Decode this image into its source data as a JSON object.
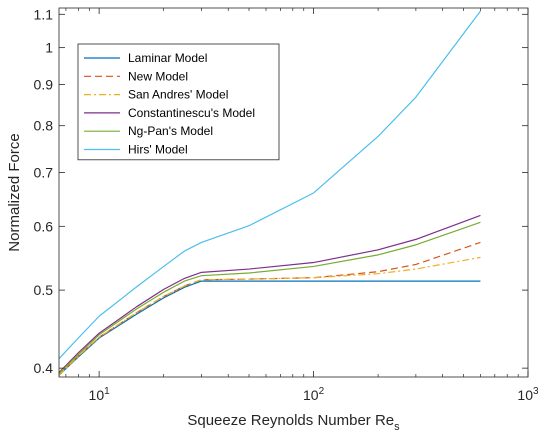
{
  "chart_data": {
    "type": "line",
    "xscale": "log",
    "yscale": "log",
    "xlim": [
      6.5,
      1000
    ],
    "ylim": [
      0.39,
      1.12
    ],
    "xticks": [
      10,
      100,
      1000
    ],
    "xtick_labels": [
      {
        "base": "10",
        "exp": "1"
      },
      {
        "base": "10",
        "exp": "2"
      },
      {
        "base": "10",
        "exp": "3"
      }
    ],
    "yticks": [
      0.4,
      0.5,
      0.6,
      0.7,
      0.8,
      0.9,
      1,
      1.1
    ],
    "ytick_labels": [
      "0.4",
      "0.5",
      "0.6",
      "0.7",
      "0.8",
      "0.9",
      "1",
      "1.1"
    ],
    "xlabel": {
      "main": "Squeeze Reynolds Number Re",
      "sub": "s"
    },
    "ylabel": "Normalized Force",
    "grid": false,
    "legend_position": "top-left",
    "series": [
      {
        "name": "Laminar Model",
        "color": "#0072BD",
        "dash": "solid",
        "x": [
          6.5,
          8,
          10,
          15,
          20,
          25,
          30,
          50,
          100,
          200,
          300,
          600
        ],
        "y": [
          0.392,
          0.413,
          0.436,
          0.467,
          0.489,
          0.504,
          0.513,
          0.513,
          0.513,
          0.513,
          0.513,
          0.513
        ]
      },
      {
        "name": "New Model",
        "color": "#D95319",
        "dash": "dashed",
        "x": [
          6.5,
          8,
          10,
          15,
          20,
          25,
          30,
          50,
          100,
          200,
          300,
          600
        ],
        "y": [
          0.392,
          0.414,
          0.437,
          0.469,
          0.491,
          0.506,
          0.515,
          0.516,
          0.518,
          0.527,
          0.538,
          0.573
        ]
      },
      {
        "name": "San Andres' Model",
        "color": "#EDB120",
        "dash": "dashdot",
        "x": [
          6.5,
          8,
          10,
          15,
          20,
          25,
          30,
          50,
          100,
          200,
          300,
          600
        ],
        "y": [
          0.392,
          0.414,
          0.437,
          0.469,
          0.491,
          0.506,
          0.515,
          0.516,
          0.518,
          0.524,
          0.531,
          0.549
        ]
      },
      {
        "name": "Constantinescu's Model",
        "color": "#7E2F8E",
        "dash": "solid",
        "x": [
          6.5,
          8,
          10,
          15,
          20,
          25,
          30,
          50,
          100,
          200,
          300,
          600
        ],
        "y": [
          0.395,
          0.418,
          0.442,
          0.477,
          0.501,
          0.517,
          0.526,
          0.531,
          0.541,
          0.561,
          0.578,
          0.619
        ]
      },
      {
        "name": "Ng-Pan's Model",
        "color": "#77AC30",
        "dash": "solid",
        "x": [
          6.5,
          8,
          10,
          15,
          20,
          25,
          30,
          50,
          100,
          200,
          300,
          600
        ],
        "y": [
          0.394,
          0.416,
          0.44,
          0.474,
          0.497,
          0.513,
          0.521,
          0.525,
          0.535,
          0.553,
          0.569,
          0.607
        ]
      },
      {
        "name": "Hirs' Model",
        "color": "#4DBEEE",
        "dash": "solid",
        "x": [
          6.5,
          8,
          10,
          15,
          20,
          25,
          30,
          50,
          100,
          200,
          300,
          600
        ],
        "y": [
          0.411,
          0.436,
          0.464,
          0.505,
          0.535,
          0.559,
          0.573,
          0.601,
          0.66,
          0.776,
          0.868,
          1.11
        ]
      }
    ]
  }
}
